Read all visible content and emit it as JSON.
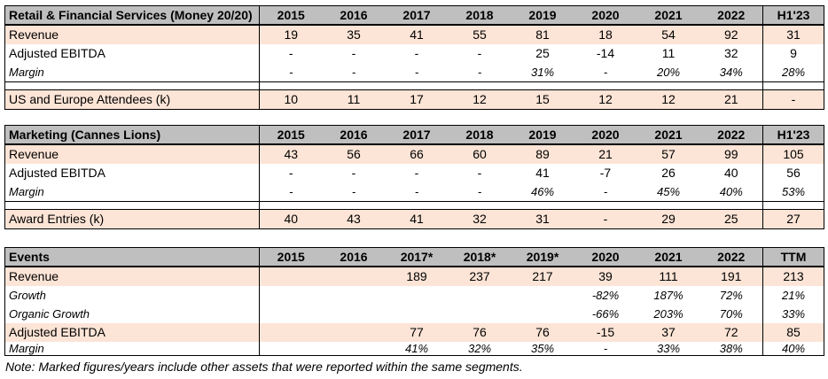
{
  "colors": {
    "header_bg": "#BFBFBF",
    "highlight_row_bg": "#FCE4D6",
    "border": "#000000",
    "text": "#000000",
    "page_bg": "#FFFFFF"
  },
  "note": "Note: Marked figures/years include other assets that were reported within the same segments.",
  "tables": [
    {
      "title": "Retail & Financial Services (Money 20/20)",
      "columns": [
        "2015",
        "2016",
        "2017",
        "2018",
        "2019",
        "2020",
        "2021",
        "2022",
        "H1'23"
      ],
      "rows": [
        {
          "label": "Revenue",
          "kind": "orange",
          "values": [
            "19",
            "35",
            "41",
            "55",
            "81",
            "18",
            "54",
            "92",
            "31"
          ]
        },
        {
          "label": "Adjusted EBITDA",
          "kind": "plain",
          "values": [
            "-",
            "-",
            "-",
            "-",
            "25",
            "-14",
            "11",
            "32",
            "9"
          ]
        },
        {
          "label": "Margin",
          "kind": "italic",
          "values": [
            "-",
            "-",
            "-",
            "-",
            "31%",
            "-",
            "20%",
            "34%",
            "28%"
          ]
        },
        {
          "kind": "spacer"
        },
        {
          "label": "US and Europe Attendees (k)",
          "kind": "orange",
          "values": [
            "10",
            "11",
            "17",
            "12",
            "15",
            "12",
            "12",
            "21",
            "-"
          ]
        }
      ]
    },
    {
      "title": "Marketing (Cannes Lions)",
      "columns": [
        "2015",
        "2016",
        "2017",
        "2018",
        "2019",
        "2020",
        "2021",
        "2022",
        "H1'23"
      ],
      "rows": [
        {
          "label": "Revenue",
          "kind": "orange",
          "values": [
            "43",
            "56",
            "66",
            "60",
            "89",
            "21",
            "57",
            "99",
            "105"
          ]
        },
        {
          "label": "Adjusted EBITDA",
          "kind": "plain",
          "values": [
            "-",
            "-",
            "-",
            "-",
            "41",
            "-7",
            "26",
            "40",
            "56"
          ]
        },
        {
          "label": "Margin",
          "kind": "italic",
          "values": [
            "-",
            "-",
            "-",
            "-",
            "46%",
            "-",
            "45%",
            "40%",
            "53%"
          ]
        },
        {
          "kind": "spacer"
        },
        {
          "label": "Award Entries (k)",
          "kind": "orange",
          "values": [
            "40",
            "43",
            "41",
            "32",
            "31",
            "-",
            "29",
            "25",
            "27"
          ]
        }
      ]
    },
    {
      "title": "Events",
      "columns": [
        "2015",
        "2016",
        "2017*",
        "2018*",
        "2019*",
        "2020",
        "2021",
        "2022",
        "TTM"
      ],
      "rows": [
        {
          "label": "Revenue",
          "kind": "orange",
          "values": [
            "",
            "",
            "189",
            "237",
            "217",
            "39",
            "111",
            "191",
            "213"
          ]
        },
        {
          "label": "Growth",
          "kind": "italic",
          "values": [
            "",
            "",
            "",
            "",
            "",
            "-82%",
            "187%",
            "72%",
            "21%"
          ]
        },
        {
          "label": "Organic Growth",
          "kind": "italic",
          "values": [
            "",
            "",
            "",
            "",
            "",
            "-66%",
            "203%",
            "70%",
            "33%"
          ]
        },
        {
          "label": "Adjusted EBITDA",
          "kind": "orange",
          "values": [
            "",
            "",
            "77",
            "76",
            "76",
            "-15",
            "37",
            "72",
            "85"
          ]
        },
        {
          "label": "Margin",
          "kind": "italic",
          "values": [
            "",
            "",
            "41%",
            "32%",
            "35%",
            "-",
            "33%",
            "38%",
            "40%"
          ]
        }
      ]
    }
  ]
}
